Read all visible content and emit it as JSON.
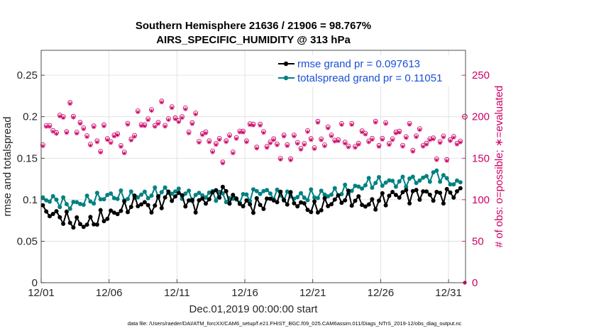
{
  "chart_data": {
    "type": "line",
    "title_line1": "Southern Hemisphere 21636 / 21906 = 98.767%",
    "title_line2": "AIRS_SPECIFIC_HUMIDITY @ 313 hPa",
    "xlabel": "Dec.01,2019 00:00:00 start",
    "ylabel_left": "rmse and totalspread",
    "ylabel_right": "# of obs: o=possible; ∗=evaluated",
    "footer": "data file: /Users/raeder/DAI/ATM_forcXX/CAM6_setup/f.e21.FHIST_BGC.f09_025.CAM6assim.011/Diags_NTrS_2019-12/obs_diag_output.nc",
    "xlim": [
      0,
      31.25
    ],
    "ylim_left": [
      0,
      0.28
    ],
    "ylim_right": [
      0,
      280
    ],
    "x_ticks": [
      0,
      5,
      10,
      15,
      20,
      25,
      30
    ],
    "x_tick_labels": [
      "12/01",
      "12/06",
      "12/11",
      "12/16",
      "12/21",
      "12/26",
      "12/31"
    ],
    "y_ticks_left": [
      0,
      0.05,
      0.1,
      0.15,
      0.2,
      0.25
    ],
    "y_tick_labels_left": [
      "0",
      "0.05",
      "0.1",
      "0.15",
      "0.2",
      "0.25"
    ],
    "y_ticks_right": [
      0,
      50,
      100,
      150,
      200,
      250
    ],
    "y_tick_labels_right": [
      "0",
      "50",
      "100",
      "150",
      "200",
      "250"
    ],
    "grid": true,
    "legend_position": "top-right",
    "colors": {
      "rmse": "#000000",
      "spread": "#008080",
      "obs": "#cc0066",
      "legend_text": "#1a4fd6"
    },
    "series": [
      {
        "name": "rmse grand pr = 0.097613",
        "key": "rmse",
        "base": [
          0.085,
          0.08,
          0.075,
          0.072,
          0.075,
          0.08,
          0.09,
          0.1,
          0.09,
          0.1,
          0.105,
          0.095,
          0.1,
          0.11,
          0.1,
          0.095,
          0.095,
          0.1,
          0.1,
          0.095,
          0.09,
          0.095,
          0.1,
          0.1,
          0.095,
          0.1,
          0.105,
          0.105,
          0.11,
          0.105,
          0.105,
          0.11
        ],
        "amp": 0.012
      },
      {
        "name": "totalspread grand pr = 0.11051",
        "key": "spread",
        "base": [
          0.1,
          0.1,
          0.095,
          0.097,
          0.1,
          0.105,
          0.105,
          0.105,
          0.105,
          0.11,
          0.11,
          0.105,
          0.105,
          0.105,
          0.1,
          0.105,
          0.11,
          0.105,
          0.105,
          0.105,
          0.105,
          0.105,
          0.11,
          0.115,
          0.12,
          0.12,
          0.12,
          0.125,
          0.125,
          0.13,
          0.12,
          0.12
        ],
        "amp": 0.009
      }
    ],
    "obs_counts": {
      "base": [
        185,
        190,
        200,
        180,
        175,
        180,
        165,
        190,
        200,
        205,
        200,
        190,
        175,
        165,
        170,
        180,
        180,
        170,
        165,
        165,
        175,
        180,
        180,
        170,
        175,
        180,
        180,
        175,
        170,
        165,
        170,
        180
      ],
      "amp": 22,
      "final_possible": 200,
      "final_evaluated": 0
    }
  }
}
